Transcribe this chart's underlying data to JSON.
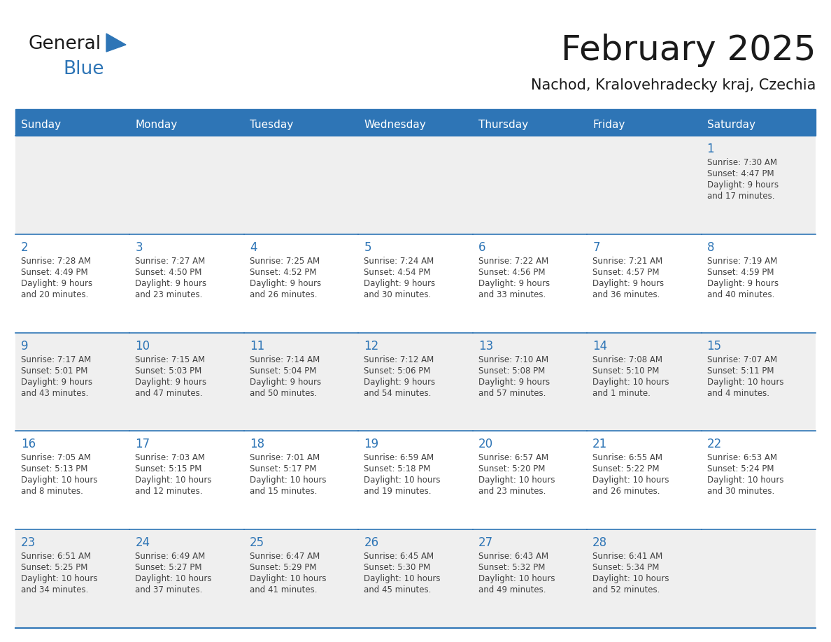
{
  "title": "February 2025",
  "subtitle": "Nachod, Kralovehradecky kraj, Czechia",
  "header_bg": "#2E75B6",
  "header_text_color": "#FFFFFF",
  "day_names": [
    "Sunday",
    "Monday",
    "Tuesday",
    "Wednesday",
    "Thursday",
    "Friday",
    "Saturday"
  ],
  "cell_bg_odd": "#EFEFEF",
  "cell_bg_even": "#FFFFFF",
  "day_number_color": "#2E75B6",
  "text_color": "#404040",
  "line_color": "#2E75B6",
  "bg_color": "#FFFFFF",
  "days": [
    {
      "day": 1,
      "col": 6,
      "row": 0,
      "sunrise": "7:30 AM",
      "sunset": "4:47 PM",
      "daylight": "9 hours\nand 17 minutes."
    },
    {
      "day": 2,
      "col": 0,
      "row": 1,
      "sunrise": "7:28 AM",
      "sunset": "4:49 PM",
      "daylight": "9 hours\nand 20 minutes."
    },
    {
      "day": 3,
      "col": 1,
      "row": 1,
      "sunrise": "7:27 AM",
      "sunset": "4:50 PM",
      "daylight": "9 hours\nand 23 minutes."
    },
    {
      "day": 4,
      "col": 2,
      "row": 1,
      "sunrise": "7:25 AM",
      "sunset": "4:52 PM",
      "daylight": "9 hours\nand 26 minutes."
    },
    {
      "day": 5,
      "col": 3,
      "row": 1,
      "sunrise": "7:24 AM",
      "sunset": "4:54 PM",
      "daylight": "9 hours\nand 30 minutes."
    },
    {
      "day": 6,
      "col": 4,
      "row": 1,
      "sunrise": "7:22 AM",
      "sunset": "4:56 PM",
      "daylight": "9 hours\nand 33 minutes."
    },
    {
      "day": 7,
      "col": 5,
      "row": 1,
      "sunrise": "7:21 AM",
      "sunset": "4:57 PM",
      "daylight": "9 hours\nand 36 minutes."
    },
    {
      "day": 8,
      "col": 6,
      "row": 1,
      "sunrise": "7:19 AM",
      "sunset": "4:59 PM",
      "daylight": "9 hours\nand 40 minutes."
    },
    {
      "day": 9,
      "col": 0,
      "row": 2,
      "sunrise": "7:17 AM",
      "sunset": "5:01 PM",
      "daylight": "9 hours\nand 43 minutes."
    },
    {
      "day": 10,
      "col": 1,
      "row": 2,
      "sunrise": "7:15 AM",
      "sunset": "5:03 PM",
      "daylight": "9 hours\nand 47 minutes."
    },
    {
      "day": 11,
      "col": 2,
      "row": 2,
      "sunrise": "7:14 AM",
      "sunset": "5:04 PM",
      "daylight": "9 hours\nand 50 minutes."
    },
    {
      "day": 12,
      "col": 3,
      "row": 2,
      "sunrise": "7:12 AM",
      "sunset": "5:06 PM",
      "daylight": "9 hours\nand 54 minutes."
    },
    {
      "day": 13,
      "col": 4,
      "row": 2,
      "sunrise": "7:10 AM",
      "sunset": "5:08 PM",
      "daylight": "9 hours\nand 57 minutes."
    },
    {
      "day": 14,
      "col": 5,
      "row": 2,
      "sunrise": "7:08 AM",
      "sunset": "5:10 PM",
      "daylight": "10 hours\nand 1 minute."
    },
    {
      "day": 15,
      "col": 6,
      "row": 2,
      "sunrise": "7:07 AM",
      "sunset": "5:11 PM",
      "daylight": "10 hours\nand 4 minutes."
    },
    {
      "day": 16,
      "col": 0,
      "row": 3,
      "sunrise": "7:05 AM",
      "sunset": "5:13 PM",
      "daylight": "10 hours\nand 8 minutes."
    },
    {
      "day": 17,
      "col": 1,
      "row": 3,
      "sunrise": "7:03 AM",
      "sunset": "5:15 PM",
      "daylight": "10 hours\nand 12 minutes."
    },
    {
      "day": 18,
      "col": 2,
      "row": 3,
      "sunrise": "7:01 AM",
      "sunset": "5:17 PM",
      "daylight": "10 hours\nand 15 minutes."
    },
    {
      "day": 19,
      "col": 3,
      "row": 3,
      "sunrise": "6:59 AM",
      "sunset": "5:18 PM",
      "daylight": "10 hours\nand 19 minutes."
    },
    {
      "day": 20,
      "col": 4,
      "row": 3,
      "sunrise": "6:57 AM",
      "sunset": "5:20 PM",
      "daylight": "10 hours\nand 23 minutes."
    },
    {
      "day": 21,
      "col": 5,
      "row": 3,
      "sunrise": "6:55 AM",
      "sunset": "5:22 PM",
      "daylight": "10 hours\nand 26 minutes."
    },
    {
      "day": 22,
      "col": 6,
      "row": 3,
      "sunrise": "6:53 AM",
      "sunset": "5:24 PM",
      "daylight": "10 hours\nand 30 minutes."
    },
    {
      "day": 23,
      "col": 0,
      "row": 4,
      "sunrise": "6:51 AM",
      "sunset": "5:25 PM",
      "daylight": "10 hours\nand 34 minutes."
    },
    {
      "day": 24,
      "col": 1,
      "row": 4,
      "sunrise": "6:49 AM",
      "sunset": "5:27 PM",
      "daylight": "10 hours\nand 37 minutes."
    },
    {
      "day": 25,
      "col": 2,
      "row": 4,
      "sunrise": "6:47 AM",
      "sunset": "5:29 PM",
      "daylight": "10 hours\nand 41 minutes."
    },
    {
      "day": 26,
      "col": 3,
      "row": 4,
      "sunrise": "6:45 AM",
      "sunset": "5:30 PM",
      "daylight": "10 hours\nand 45 minutes."
    },
    {
      "day": 27,
      "col": 4,
      "row": 4,
      "sunrise": "6:43 AM",
      "sunset": "5:32 PM",
      "daylight": "10 hours\nand 49 minutes."
    },
    {
      "day": 28,
      "col": 5,
      "row": 4,
      "sunrise": "6:41 AM",
      "sunset": "5:34 PM",
      "daylight": "10 hours\nand 52 minutes."
    }
  ],
  "num_rows": 5,
  "num_cols": 7
}
